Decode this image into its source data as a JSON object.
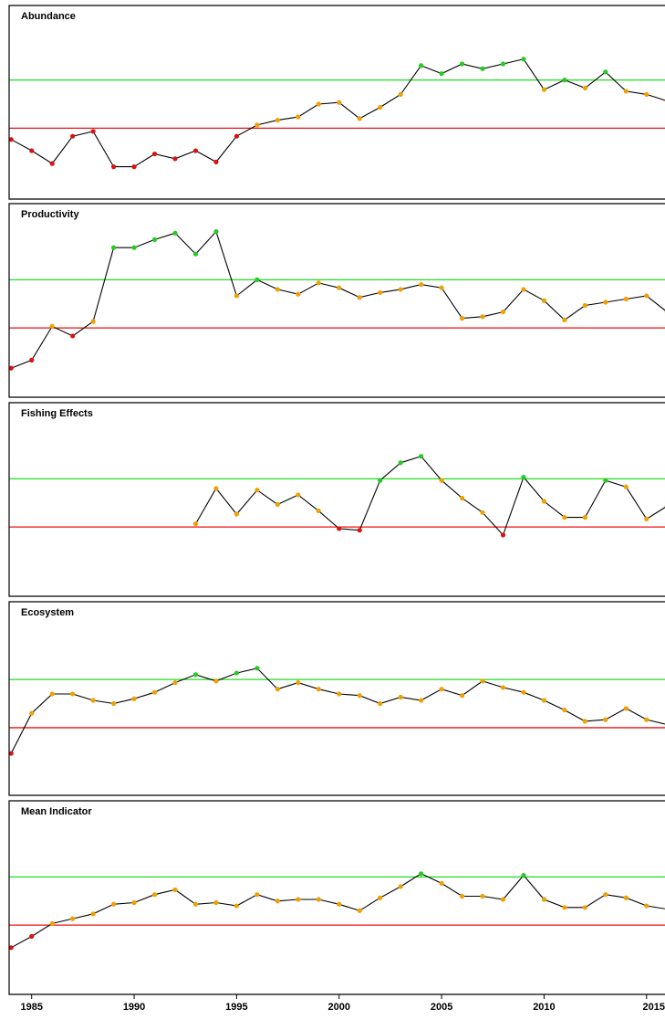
{
  "chart_data": {
    "type": "line",
    "xlim": [
      1983.9,
      2015.9
    ],
    "x_ticks": [
      1985,
      1990,
      1995,
      2000,
      2005,
      2010,
      2015
    ],
    "x_tick_labels": [
      "1985",
      "1990",
      "1995",
      "2000",
      "2005",
      "2010",
      "2015"
    ],
    "grid": false,
    "colors": {
      "upper_reference": "#22dd22",
      "lower_reference": "#ee1111",
      "status_green": "#22cc22",
      "status_orange": "#f0a000",
      "status_red": "#dd1111",
      "line": "#000000"
    },
    "panels": [
      {
        "title": "Abundance",
        "ylim": [
          0,
          100
        ],
        "upper_reference": 65,
        "lower_reference": 35,
        "x": [
          1984,
          1985,
          1986,
          1987,
          1988,
          1989,
          1990,
          1991,
          1992,
          1993,
          1994,
          1995,
          1996,
          1997,
          1998,
          1999,
          2000,
          2001,
          2002,
          2003,
          2004,
          2005,
          2006,
          2007,
          2008,
          2009,
          2010,
          2011,
          2012,
          2013,
          2014,
          2015,
          2016
        ],
        "y": [
          28,
          21,
          13,
          30,
          33,
          11,
          11,
          19,
          16,
          21,
          14,
          30,
          37,
          40,
          42,
          50,
          51,
          41,
          48,
          56,
          74,
          69,
          75,
          72,
          75,
          78,
          59,
          65,
          60,
          70,
          58,
          56,
          52
        ],
        "status": [
          "red",
          "red",
          "red",
          "red",
          "red",
          "red",
          "red",
          "red",
          "red",
          "red",
          "red",
          "red",
          "orange",
          "orange",
          "orange",
          "orange",
          "orange",
          "orange",
          "orange",
          "orange",
          "green",
          "green",
          "green",
          "green",
          "green",
          "green",
          "orange",
          "green",
          "orange",
          "green",
          "orange",
          "orange",
          "orange"
        ]
      },
      {
        "title": "Productivity",
        "ylim": [
          0,
          100
        ],
        "upper_reference": 64,
        "lower_reference": 34,
        "x": [
          1984,
          1985,
          1986,
          1987,
          1988,
          1989,
          1990,
          1991,
          1992,
          1993,
          1994,
          1995,
          1996,
          1997,
          1998,
          1999,
          2000,
          2001,
          2002,
          2003,
          2004,
          2005,
          2006,
          2007,
          2008,
          2009,
          2010,
          2011,
          2012,
          2013,
          2014,
          2015,
          2016
        ],
        "y": [
          9,
          14,
          35,
          29,
          38,
          84,
          84,
          89,
          93,
          80,
          94,
          54,
          64,
          58,
          55,
          62,
          59,
          53,
          56,
          58,
          61,
          59,
          40,
          41,
          44,
          58,
          51,
          39,
          48,
          50,
          52,
          54,
          44
        ],
        "status": [
          "red",
          "red",
          "orange",
          "red",
          "orange",
          "green",
          "green",
          "green",
          "green",
          "green",
          "green",
          "orange",
          "green",
          "orange",
          "orange",
          "orange",
          "orange",
          "orange",
          "orange",
          "orange",
          "orange",
          "orange",
          "orange",
          "orange",
          "orange",
          "orange",
          "orange",
          "orange",
          "orange",
          "orange",
          "orange",
          "orange",
          "orange"
        ]
      },
      {
        "title": "Fishing Effects",
        "ylim": [
          0,
          100
        ],
        "upper_reference": 64,
        "lower_reference": 34,
        "x": [
          1993,
          1994,
          1995,
          1996,
          1997,
          1998,
          1999,
          2000,
          2001,
          2002,
          2003,
          2004,
          2005,
          2006,
          2007,
          2008,
          2009,
          2010,
          2011,
          2012,
          2013,
          2014,
          2015,
          2016
        ],
        "y": [
          36,
          58,
          42,
          57,
          48,
          54,
          44,
          33,
          32,
          63,
          74,
          78,
          63,
          52,
          43,
          29,
          65,
          50,
          40,
          40,
          63,
          59,
          39,
          47
        ],
        "status": [
          "orange",
          "orange",
          "orange",
          "orange",
          "orange",
          "orange",
          "orange",
          "red",
          "red",
          "green",
          "green",
          "green",
          "orange",
          "orange",
          "orange",
          "red",
          "green",
          "orange",
          "orange",
          "orange",
          "green",
          "orange",
          "orange",
          "orange"
        ]
      },
      {
        "title": "Ecosystem",
        "ylim": [
          0,
          100
        ],
        "upper_reference": 63,
        "lower_reference": 33,
        "x": [
          1984,
          1985,
          1986,
          1987,
          1988,
          1989,
          1990,
          1991,
          1992,
          1993,
          1994,
          1995,
          1996,
          1997,
          1998,
          1999,
          2000,
          2001,
          2002,
          2003,
          2004,
          2005,
          2006,
          2007,
          2008,
          2009,
          2010,
          2011,
          2012,
          2013,
          2014,
          2015,
          2016
        ],
        "y": [
          17,
          42,
          54,
          54,
          50,
          48,
          51,
          55,
          61,
          66,
          62,
          67,
          70,
          57,
          61,
          57,
          54,
          53,
          48,
          52,
          50,
          57,
          53,
          62,
          58,
          55,
          50,
          44,
          37,
          38,
          45,
          38,
          35
        ],
        "status": [
          "red",
          "orange",
          "orange",
          "orange",
          "orange",
          "orange",
          "orange",
          "orange",
          "orange",
          "green",
          "orange",
          "green",
          "green",
          "orange",
          "orange",
          "orange",
          "orange",
          "orange",
          "orange",
          "orange",
          "orange",
          "orange",
          "orange",
          "orange",
          "orange",
          "orange",
          "orange",
          "orange",
          "orange",
          "orange",
          "orange",
          "orange",
          "orange"
        ]
      },
      {
        "title": "Mean Indicator",
        "ylim": [
          0,
          100
        ],
        "upper_reference": 64,
        "lower_reference": 34,
        "x": [
          1984,
          1985,
          1986,
          1987,
          1988,
          1989,
          1990,
          1991,
          1992,
          1993,
          1994,
          1995,
          1996,
          1997,
          1998,
          1999,
          2000,
          2001,
          2002,
          2003,
          2004,
          2005,
          2006,
          2007,
          2008,
          2009,
          2010,
          2011,
          2012,
          2013,
          2014,
          2015,
          2016
        ],
        "y": [
          20,
          27,
          35,
          38,
          41,
          47,
          48,
          53,
          56,
          47,
          48,
          46,
          53,
          49,
          50,
          50,
          47,
          43,
          51,
          58,
          66,
          60,
          52,
          52,
          50,
          65,
          50,
          45,
          45,
          53,
          51,
          46,
          44
        ],
        "status": [
          "red",
          "red",
          "orange",
          "orange",
          "orange",
          "orange",
          "orange",
          "orange",
          "orange",
          "orange",
          "orange",
          "orange",
          "orange",
          "orange",
          "orange",
          "orange",
          "orange",
          "orange",
          "orange",
          "orange",
          "green",
          "orange",
          "orange",
          "orange",
          "orange",
          "green",
          "orange",
          "orange",
          "orange",
          "orange",
          "orange",
          "orange",
          "orange"
        ]
      }
    ]
  }
}
